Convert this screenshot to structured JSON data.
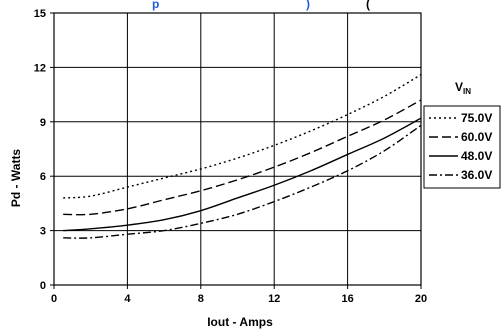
{
  "title_fragment": "p",
  "title_suffix": ") ",
  "title_tail": "(",
  "colors": {
    "title": "#1f5fd8",
    "line": "#000000",
    "grid": "#000000"
  },
  "chart_data": {
    "type": "line",
    "title": "",
    "xlabel": "Iout - Amps",
    "ylabel": "Pd - Watts",
    "xlim": [
      0,
      20
    ],
    "ylim": [
      0,
      15
    ],
    "xticks": [
      0,
      4,
      8,
      12,
      16,
      20
    ],
    "yticks": [
      0,
      3,
      6,
      9,
      12,
      15
    ],
    "grid": true,
    "legend_title": "V",
    "legend_title_sub": "IN",
    "legend_position": "right",
    "series": [
      {
        "name": "75.0V",
        "dash": "2,3",
        "x": [
          0.5,
          2,
          4,
          6,
          8,
          10,
          12,
          14,
          16,
          18,
          20
        ],
        "y": [
          4.8,
          4.9,
          5.4,
          5.9,
          6.4,
          7.0,
          7.7,
          8.5,
          9.4,
          10.4,
          11.6
        ]
      },
      {
        "name": "60.0V",
        "dash": "9,4",
        "x": [
          0.5,
          2,
          4,
          6,
          8,
          10,
          12,
          14,
          16,
          18,
          20
        ],
        "y": [
          3.9,
          3.9,
          4.2,
          4.7,
          5.2,
          5.8,
          6.5,
          7.3,
          8.2,
          9.1,
          10.2
        ]
      },
      {
        "name": "48.0V",
        "dash": "",
        "x": [
          0.5,
          2,
          4,
          6,
          8,
          10,
          12,
          14,
          16,
          18,
          20
        ],
        "y": [
          3.0,
          3.1,
          3.3,
          3.6,
          4.1,
          4.8,
          5.5,
          6.3,
          7.2,
          8.1,
          9.2
        ]
      },
      {
        "name": "36.0V",
        "dash": "8,3,2,3",
        "x": [
          0.5,
          2,
          4,
          6,
          8,
          10,
          12,
          14,
          16,
          18,
          20
        ],
        "y": [
          2.6,
          2.6,
          2.8,
          3.0,
          3.4,
          3.9,
          4.6,
          5.4,
          6.3,
          7.4,
          8.8
        ]
      }
    ]
  }
}
